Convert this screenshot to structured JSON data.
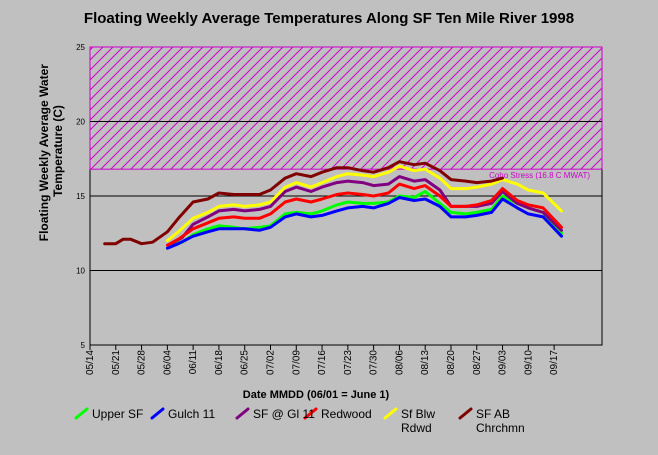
{
  "chart_data": {
    "type": "line",
    "title": "Floating Weekly Average Temperatures Along SF Ten Mile River 1998",
    "xlabel": "Date MMDD (06/01 = June 1)",
    "ylabel": "Floating Weekly Average Water Temperature (C)",
    "ylim": [
      5,
      25
    ],
    "yticks": [
      "5",
      "10",
      "15",
      "20",
      "25"
    ],
    "xticks": [
      "05/14",
      "05/21",
      "05/28",
      "06/04",
      "06/11",
      "06/18",
      "06/25",
      "07/02",
      "07/09",
      "07/16",
      "07/23",
      "07/30",
      "08/06",
      "08/13",
      "08/20",
      "08/27",
      "09/03",
      "09/10",
      "09/17"
    ],
    "x_days": [
      0,
      7,
      14,
      21,
      28,
      35,
      42,
      49,
      56,
      63,
      70,
      77,
      84,
      91,
      98,
      105,
      112,
      119,
      126
    ],
    "grid_y": [
      10,
      15,
      20
    ],
    "stress_band": {
      "from": 16.8,
      "to": 25,
      "label": "Coho Stress (16.8 C MWAT)",
      "color": "#cc00cc"
    },
    "series": [
      {
        "name": "Upper SF",
        "color": "#00ff00",
        "x": [
          23,
          25,
          28,
          32,
          35,
          39,
          42,
          46,
          49,
          53,
          56,
          60,
          63,
          67,
          70,
          74,
          77,
          81,
          84,
          88,
          91,
          95,
          98,
          102,
          105,
          109,
          112,
          116,
          119,
          123,
          128
        ],
        "values": [
          11.8,
          11.9,
          12.4,
          12.8,
          13.0,
          12.9,
          12.8,
          12.9,
          13.0,
          13.8,
          13.9,
          13.8,
          14.0,
          14.4,
          14.6,
          14.5,
          14.5,
          14.6,
          15.0,
          14.9,
          15.3,
          14.5,
          13.9,
          13.8,
          13.9,
          14.1,
          15.0,
          14.5,
          14.2,
          13.9,
          12.5
        ]
      },
      {
        "name": "Gulch 11",
        "color": "#0000ff",
        "x": [
          21,
          24,
          28,
          32,
          35,
          39,
          42,
          46,
          49,
          53,
          56,
          60,
          63,
          67,
          70,
          74,
          77,
          81,
          84,
          88,
          91,
          95,
          98,
          102,
          105,
          109,
          112,
          116,
          119,
          123,
          128
        ],
        "values": [
          11.5,
          11.8,
          12.3,
          12.6,
          12.8,
          12.8,
          12.8,
          12.7,
          12.9,
          13.6,
          13.8,
          13.6,
          13.7,
          14.0,
          14.2,
          14.3,
          14.2,
          14.5,
          14.9,
          14.7,
          14.8,
          14.3,
          13.6,
          13.6,
          13.7,
          13.9,
          14.8,
          14.2,
          13.8,
          13.6,
          12.3
        ]
      },
      {
        "name": "SF @ Gl 11",
        "color": "#800080",
        "x": [
          22,
          25,
          28,
          32,
          35,
          39,
          42,
          46,
          49,
          53,
          56,
          60,
          63,
          67,
          70,
          74,
          77,
          81,
          84,
          88,
          91,
          95,
          98,
          102,
          105,
          109,
          112,
          116,
          119,
          123,
          128
        ],
        "values": [
          11.8,
          12.2,
          13.1,
          13.6,
          14.0,
          14.1,
          14.0,
          14.1,
          14.3,
          15.3,
          15.6,
          15.3,
          15.6,
          15.9,
          16.0,
          15.9,
          15.7,
          15.8,
          16.3,
          16.0,
          16.1,
          15.4,
          14.3,
          14.3,
          14.3,
          14.5,
          15.3,
          14.5,
          14.2,
          13.9,
          12.7
        ]
      },
      {
        "name": "Redwood",
        "color": "#ff0000",
        "x": [
          21,
          24,
          28,
          32,
          35,
          39,
          42,
          46,
          49,
          53,
          56,
          60,
          63,
          67,
          70,
          74,
          77,
          81,
          84,
          88,
          91,
          95,
          98,
          102,
          105,
          109,
          112,
          116,
          119,
          123,
          128
        ],
        "values": [
          11.7,
          12.1,
          12.8,
          13.2,
          13.5,
          13.6,
          13.5,
          13.5,
          13.8,
          14.6,
          14.8,
          14.6,
          14.8,
          15.1,
          15.2,
          15.1,
          15.0,
          15.2,
          15.8,
          15.5,
          15.7,
          15.0,
          14.3,
          14.3,
          14.4,
          14.7,
          15.5,
          14.7,
          14.4,
          14.2,
          12.9
        ]
      },
      {
        "name": "Sf Blw Rdwd",
        "color": "#ffff00",
        "x": [
          21,
          24,
          28,
          32,
          35,
          39,
          42,
          46,
          49,
          53,
          56,
          60,
          63,
          67,
          70,
          74,
          77,
          81,
          84,
          88,
          91,
          95,
          98,
          102,
          105,
          109,
          112,
          116,
          119,
          123,
          128
        ],
        "values": [
          12.0,
          12.6,
          13.5,
          13.9,
          14.3,
          14.4,
          14.3,
          14.4,
          14.6,
          15.6,
          15.9,
          15.6,
          15.9,
          16.3,
          16.5,
          16.4,
          16.3,
          16.6,
          17.0,
          16.7,
          16.8,
          16.2,
          15.5,
          15.5,
          15.6,
          15.8,
          16.1,
          15.8,
          15.4,
          15.2,
          14.0
        ]
      },
      {
        "name": "SF AB Chrchmn",
        "color": "#800000",
        "x": [
          4,
          7,
          9,
          11,
          14,
          17,
          21,
          24,
          28,
          32,
          35,
          39,
          42,
          46,
          49,
          53,
          56,
          60,
          63,
          67,
          70,
          74,
          77,
          81,
          84,
          88,
          91,
          95,
          98,
          102,
          105,
          109,
          112
        ],
        "values": [
          11.8,
          11.8,
          12.1,
          12.1,
          11.8,
          11.9,
          12.6,
          13.5,
          14.6,
          14.8,
          15.2,
          15.1,
          15.1,
          15.1,
          15.4,
          16.2,
          16.5,
          16.3,
          16.6,
          16.9,
          16.9,
          16.7,
          16.6,
          16.9,
          17.3,
          17.1,
          17.2,
          16.7,
          16.1,
          16.0,
          15.9,
          16.0,
          16.2
        ]
      }
    ]
  }
}
